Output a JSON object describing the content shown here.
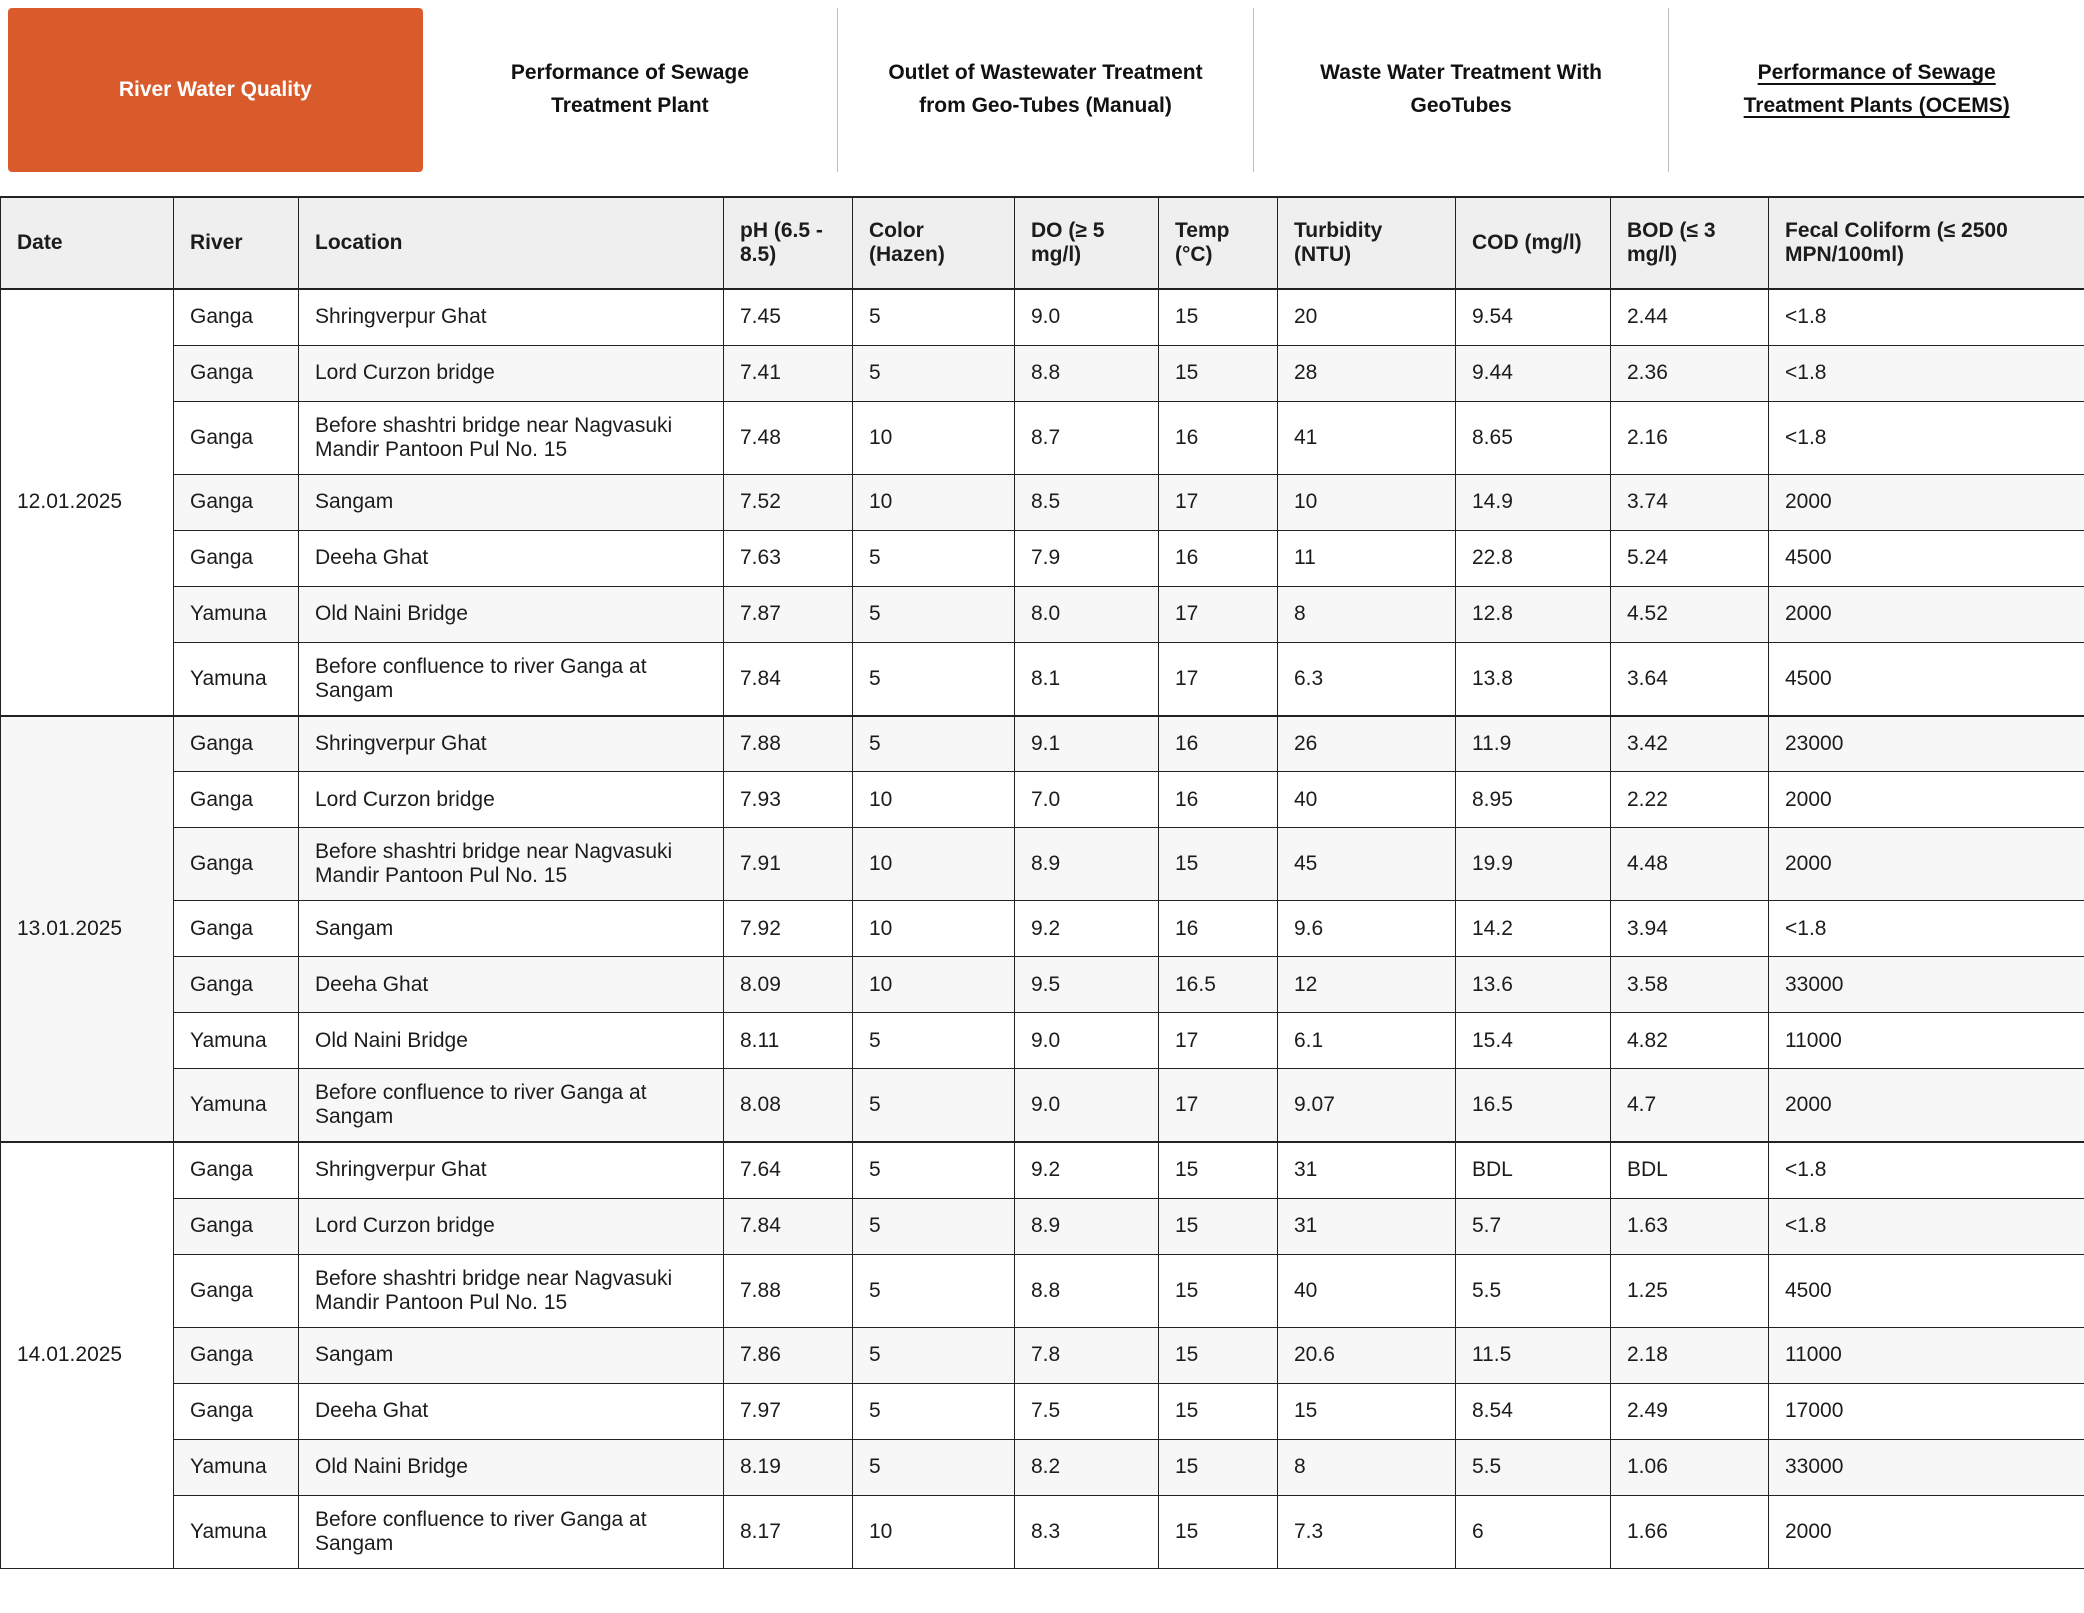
{
  "colors": {
    "accent": "#d95b2c",
    "header_bg": "#efefef",
    "stripe": "#f7f7f7",
    "border": "#222222",
    "tab_divider": "#bdbdbd"
  },
  "tabs": [
    {
      "label": "River Water Quality",
      "active": true
    },
    {
      "label": "Performance of Sewage Treatment Plant"
    },
    {
      "label": "Outlet of Wastewater Treatment from Geo-Tubes (Manual)"
    },
    {
      "label": "Waste Water Treatment With GeoTubes"
    },
    {
      "label": "Performance of Sewage Treatment Plants (OCEMS)",
      "underlined": true
    }
  ],
  "table": {
    "columns": [
      "Date",
      "River",
      "Location",
      "pH (6.5 - 8.5)",
      "Color (Hazen)",
      "DO (≥ 5 mg/l)",
      "Temp (°C)",
      "Turbidity (NTU)",
      "COD (mg/l)",
      "BOD (≤ 3 mg/l)",
      "Fecal Coliform (≤ 2500 MPN/100ml)"
    ],
    "groups": [
      {
        "date": "12.01.2025",
        "rows": [
          [
            "Ganga",
            "Shringverpur Ghat",
            "7.45",
            "5",
            "9.0",
            "15",
            "20",
            "9.54",
            "2.44",
            "<1.8"
          ],
          [
            "Ganga",
            "Lord Curzon bridge",
            "7.41",
            "5",
            "8.8",
            "15",
            "28",
            "9.44",
            "2.36",
            "<1.8"
          ],
          [
            "Ganga",
            "Before shashtri bridge near Nagvasuki Mandir Pantoon Pul No. 15",
            "7.48",
            "10",
            "8.7",
            "16",
            "41",
            "8.65",
            "2.16",
            "<1.8"
          ],
          [
            "Ganga",
            "Sangam",
            "7.52",
            "10",
            "8.5",
            "17",
            "10",
            "14.9",
            "3.74",
            "2000"
          ],
          [
            "Ganga",
            "Deeha Ghat",
            "7.63",
            "5",
            "7.9",
            "16",
            "11",
            "22.8",
            "5.24",
            "4500"
          ],
          [
            "Yamuna",
            "Old Naini Bridge",
            "7.87",
            "5",
            "8.0",
            "17",
            "8",
            "12.8",
            "4.52",
            "2000"
          ],
          [
            "Yamuna",
            "Before confluence to river Ganga at Sangam",
            "7.84",
            "5",
            "8.1",
            "17",
            "6.3",
            "13.8",
            "3.64",
            "4500"
          ]
        ]
      },
      {
        "date": "13.01.2025",
        "rows": [
          [
            "Ganga",
            "Shringverpur Ghat",
            "7.88",
            "5",
            "9.1",
            "16",
            "26",
            "11.9",
            "3.42",
            "23000"
          ],
          [
            "Ganga",
            "Lord Curzon bridge",
            "7.93",
            "10",
            "7.0",
            "16",
            "40",
            "8.95",
            "2.22",
            "2000"
          ],
          [
            "Ganga",
            "Before shashtri bridge near Nagvasuki Mandir Pantoon Pul No. 15",
            "7.91",
            "10",
            "8.9",
            "15",
            "45",
            "19.9",
            "4.48",
            "2000"
          ],
          [
            "Ganga",
            "Sangam",
            "7.92",
            "10",
            "9.2",
            "16",
            "9.6",
            "14.2",
            "3.94",
            "<1.8"
          ],
          [
            "Ganga",
            "Deeha Ghat",
            "8.09",
            "10",
            "9.5",
            "16.5",
            "12",
            "13.6",
            "3.58",
            "33000"
          ],
          [
            "Yamuna",
            "Old Naini Bridge",
            "8.11",
            "5",
            "9.0",
            "17",
            "6.1",
            "15.4",
            "4.82",
            "11000"
          ],
          [
            "Yamuna",
            "Before confluence to river Ganga at Sangam",
            "8.08",
            "5",
            "9.0",
            "17",
            "9.07",
            "16.5",
            "4.7",
            "2000"
          ]
        ]
      },
      {
        "date": "14.01.2025",
        "rows": [
          [
            "Ganga",
            "Shringverpur Ghat",
            "7.64",
            "5",
            "9.2",
            "15",
            "31",
            "BDL",
            "BDL",
            "<1.8"
          ],
          [
            "Ganga",
            "Lord Curzon bridge",
            "7.84",
            "5",
            "8.9",
            "15",
            "31",
            "5.7",
            "1.63",
            "<1.8"
          ],
          [
            "Ganga",
            "Before shashtri bridge near Nagvasuki Mandir Pantoon Pul No. 15",
            "7.88",
            "5",
            "8.8",
            "15",
            "40",
            "5.5",
            "1.25",
            "4500"
          ],
          [
            "Ganga",
            "Sangam",
            "7.86",
            "5",
            "7.8",
            "15",
            "20.6",
            "11.5",
            "2.18",
            "11000"
          ],
          [
            "Ganga",
            "Deeha Ghat",
            "7.97",
            "5",
            "7.5",
            "15",
            "15",
            "8.54",
            "2.49",
            "17000"
          ],
          [
            "Yamuna",
            "Old Naini Bridge",
            "8.19",
            "5",
            "8.2",
            "15",
            "8",
            "5.5",
            "1.06",
            "33000"
          ],
          [
            "Yamuna",
            "Before confluence to river Ganga at Sangam",
            "8.17",
            "10",
            "8.3",
            "15",
            "7.3",
            "6",
            "1.66",
            "2000"
          ]
        ]
      }
    ]
  }
}
